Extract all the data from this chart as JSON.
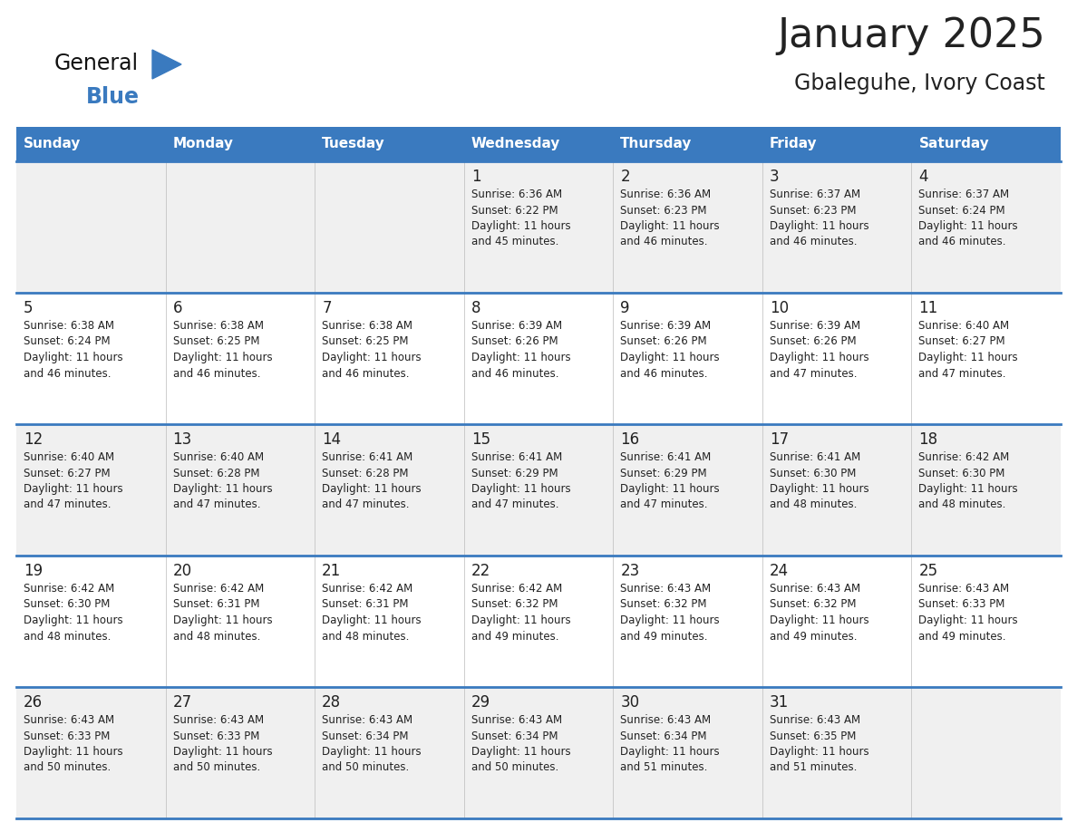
{
  "title": "January 2025",
  "subtitle": "Gbaleguhe, Ivory Coast",
  "header_color": "#3a7abf",
  "header_text_color": "#ffffff",
  "day_names": [
    "Sunday",
    "Monday",
    "Tuesday",
    "Wednesday",
    "Thursday",
    "Friday",
    "Saturday"
  ],
  "bg_color": "#ffffff",
  "cell_bg_even": "#f0f0f0",
  "cell_bg_odd": "#ffffff",
  "text_color": "#222222",
  "line_color": "#3a7abf",
  "calendar": [
    [
      {
        "day": null,
        "info": null
      },
      {
        "day": null,
        "info": null
      },
      {
        "day": null,
        "info": null
      },
      {
        "day": 1,
        "info": "Sunrise: 6:36 AM\nSunset: 6:22 PM\nDaylight: 11 hours\nand 45 minutes."
      },
      {
        "day": 2,
        "info": "Sunrise: 6:36 AM\nSunset: 6:23 PM\nDaylight: 11 hours\nand 46 minutes."
      },
      {
        "day": 3,
        "info": "Sunrise: 6:37 AM\nSunset: 6:23 PM\nDaylight: 11 hours\nand 46 minutes."
      },
      {
        "day": 4,
        "info": "Sunrise: 6:37 AM\nSunset: 6:24 PM\nDaylight: 11 hours\nand 46 minutes."
      }
    ],
    [
      {
        "day": 5,
        "info": "Sunrise: 6:38 AM\nSunset: 6:24 PM\nDaylight: 11 hours\nand 46 minutes."
      },
      {
        "day": 6,
        "info": "Sunrise: 6:38 AM\nSunset: 6:25 PM\nDaylight: 11 hours\nand 46 minutes."
      },
      {
        "day": 7,
        "info": "Sunrise: 6:38 AM\nSunset: 6:25 PM\nDaylight: 11 hours\nand 46 minutes."
      },
      {
        "day": 8,
        "info": "Sunrise: 6:39 AM\nSunset: 6:26 PM\nDaylight: 11 hours\nand 46 minutes."
      },
      {
        "day": 9,
        "info": "Sunrise: 6:39 AM\nSunset: 6:26 PM\nDaylight: 11 hours\nand 46 minutes."
      },
      {
        "day": 10,
        "info": "Sunrise: 6:39 AM\nSunset: 6:26 PM\nDaylight: 11 hours\nand 47 minutes."
      },
      {
        "day": 11,
        "info": "Sunrise: 6:40 AM\nSunset: 6:27 PM\nDaylight: 11 hours\nand 47 minutes."
      }
    ],
    [
      {
        "day": 12,
        "info": "Sunrise: 6:40 AM\nSunset: 6:27 PM\nDaylight: 11 hours\nand 47 minutes."
      },
      {
        "day": 13,
        "info": "Sunrise: 6:40 AM\nSunset: 6:28 PM\nDaylight: 11 hours\nand 47 minutes."
      },
      {
        "day": 14,
        "info": "Sunrise: 6:41 AM\nSunset: 6:28 PM\nDaylight: 11 hours\nand 47 minutes."
      },
      {
        "day": 15,
        "info": "Sunrise: 6:41 AM\nSunset: 6:29 PM\nDaylight: 11 hours\nand 47 minutes."
      },
      {
        "day": 16,
        "info": "Sunrise: 6:41 AM\nSunset: 6:29 PM\nDaylight: 11 hours\nand 47 minutes."
      },
      {
        "day": 17,
        "info": "Sunrise: 6:41 AM\nSunset: 6:30 PM\nDaylight: 11 hours\nand 48 minutes."
      },
      {
        "day": 18,
        "info": "Sunrise: 6:42 AM\nSunset: 6:30 PM\nDaylight: 11 hours\nand 48 minutes."
      }
    ],
    [
      {
        "day": 19,
        "info": "Sunrise: 6:42 AM\nSunset: 6:30 PM\nDaylight: 11 hours\nand 48 minutes."
      },
      {
        "day": 20,
        "info": "Sunrise: 6:42 AM\nSunset: 6:31 PM\nDaylight: 11 hours\nand 48 minutes."
      },
      {
        "day": 21,
        "info": "Sunrise: 6:42 AM\nSunset: 6:31 PM\nDaylight: 11 hours\nand 48 minutes."
      },
      {
        "day": 22,
        "info": "Sunrise: 6:42 AM\nSunset: 6:32 PM\nDaylight: 11 hours\nand 49 minutes."
      },
      {
        "day": 23,
        "info": "Sunrise: 6:43 AM\nSunset: 6:32 PM\nDaylight: 11 hours\nand 49 minutes."
      },
      {
        "day": 24,
        "info": "Sunrise: 6:43 AM\nSunset: 6:32 PM\nDaylight: 11 hours\nand 49 minutes."
      },
      {
        "day": 25,
        "info": "Sunrise: 6:43 AM\nSunset: 6:33 PM\nDaylight: 11 hours\nand 49 minutes."
      }
    ],
    [
      {
        "day": 26,
        "info": "Sunrise: 6:43 AM\nSunset: 6:33 PM\nDaylight: 11 hours\nand 50 minutes."
      },
      {
        "day": 27,
        "info": "Sunrise: 6:43 AM\nSunset: 6:33 PM\nDaylight: 11 hours\nand 50 minutes."
      },
      {
        "day": 28,
        "info": "Sunrise: 6:43 AM\nSunset: 6:34 PM\nDaylight: 11 hours\nand 50 minutes."
      },
      {
        "day": 29,
        "info": "Sunrise: 6:43 AM\nSunset: 6:34 PM\nDaylight: 11 hours\nand 50 minutes."
      },
      {
        "day": 30,
        "info": "Sunrise: 6:43 AM\nSunset: 6:34 PM\nDaylight: 11 hours\nand 51 minutes."
      },
      {
        "day": 31,
        "info": "Sunrise: 6:43 AM\nSunset: 6:35 PM\nDaylight: 11 hours\nand 51 minutes."
      },
      {
        "day": null,
        "info": null
      }
    ]
  ],
  "logo_text_general": "General",
  "logo_text_blue": "Blue",
  "logo_color_general": "#111111",
  "logo_color_blue": "#3a7abf",
  "title_fontsize": 32,
  "subtitle_fontsize": 17,
  "header_fontsize": 11,
  "day_num_fontsize": 12,
  "info_fontsize": 8.5
}
